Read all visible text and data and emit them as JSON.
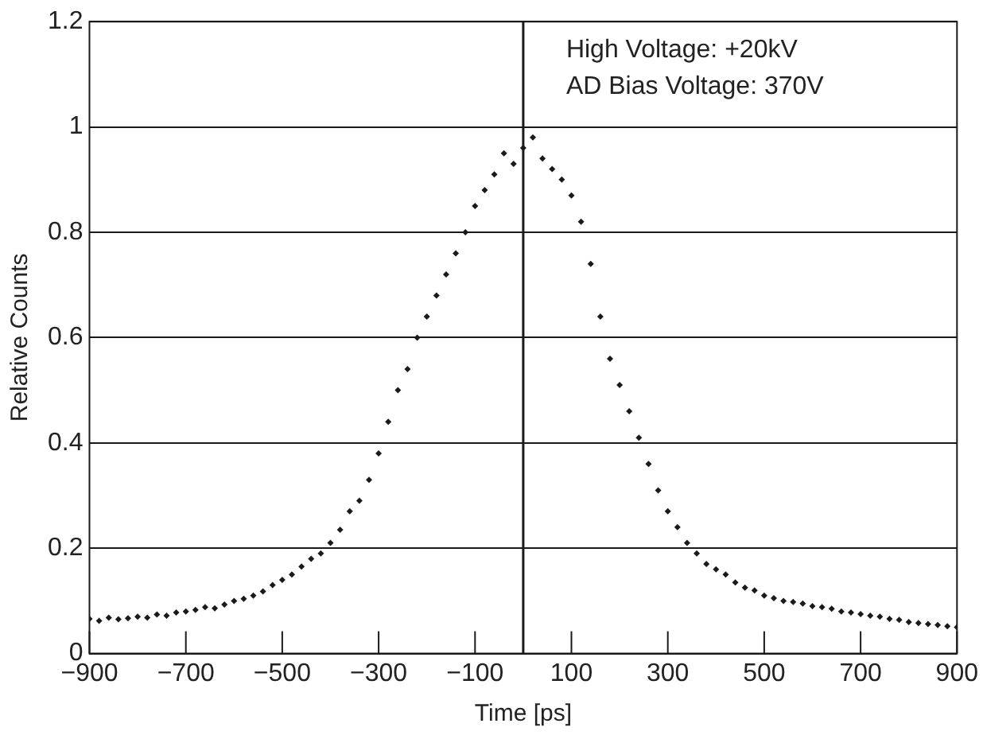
{
  "chart_data": {
    "type": "scatter",
    "xlabel": "Time [ps]",
    "ylabel": "Relative Counts",
    "annotations": [
      "High Voltage: +20kV",
      "AD Bias Voltage: 370V"
    ],
    "x": [
      -900,
      -880,
      -860,
      -840,
      -820,
      -800,
      -780,
      -760,
      -740,
      -720,
      -700,
      -680,
      -660,
      -640,
      -620,
      -600,
      -580,
      -560,
      -540,
      -520,
      -500,
      -480,
      -460,
      -440,
      -420,
      -400,
      -380,
      -360,
      -340,
      -320,
      -300,
      -280,
      -260,
      -240,
      -220,
      -200,
      -180,
      -160,
      -140,
      -120,
      -100,
      -80,
      -60,
      -40,
      -20,
      0,
      20,
      40,
      60,
      80,
      100,
      120,
      140,
      160,
      180,
      200,
      220,
      240,
      260,
      280,
      300,
      320,
      340,
      360,
      380,
      400,
      420,
      440,
      460,
      480,
      500,
      520,
      540,
      560,
      580,
      600,
      620,
      640,
      660,
      680,
      700,
      720,
      740,
      760,
      780,
      800,
      820,
      840,
      860,
      880,
      900
    ],
    "series": [
      {
        "color": "#1a1a1a",
        "values": [
          0.066,
          0.062,
          0.068,
          0.065,
          0.067,
          0.07,
          0.068,
          0.074,
          0.072,
          0.078,
          0.08,
          0.083,
          0.088,
          0.086,
          0.093,
          0.1,
          0.104,
          0.11,
          0.118,
          0.13,
          0.14,
          0.15,
          0.165,
          0.18,
          0.19,
          0.21,
          0.235,
          0.27,
          0.29,
          0.33,
          0.38,
          0.44,
          0.5,
          0.54,
          0.6,
          0.64,
          0.68,
          0.72,
          0.76,
          0.8,
          0.85,
          0.88,
          0.91,
          0.95,
          0.93,
          0.96,
          0.98,
          0.94,
          0.92,
          0.9,
          0.87,
          0.82,
          0.74,
          0.64,
          0.56,
          0.51,
          0.46,
          0.41,
          0.36,
          0.31,
          0.27,
          0.24,
          0.21,
          0.19,
          0.17,
          0.16,
          0.15,
          0.135,
          0.125,
          0.12,
          0.11,
          0.105,
          0.1,
          0.098,
          0.095,
          0.09,
          0.088,
          0.085,
          0.08,
          0.078,
          0.075,
          0.072,
          0.07,
          0.066,
          0.064,
          0.06,
          0.058,
          0.056,
          0.054,
          0.052,
          0.05
        ]
      }
    ],
    "xlim": [
      -900,
      900
    ],
    "ylim": [
      0,
      1.2
    ],
    "xticks": [
      {
        "value": -900,
        "label": "−900"
      },
      {
        "value": -700,
        "label": "−700"
      },
      {
        "value": -500,
        "label": "−500"
      },
      {
        "value": -300,
        "label": "−300"
      },
      {
        "value": -100,
        "label": "−100"
      },
      100,
      300,
      500,
      700,
      900
    ],
    "yticks": [
      0,
      0.2,
      0.4,
      0.6,
      0.8,
      1,
      1.2
    ],
    "ref_lines": [
      {
        "axis": "x",
        "value": 0,
        "color": "#1a1a1a"
      }
    ],
    "grid": "y",
    "legend": false,
    "marker": "diamond"
  }
}
